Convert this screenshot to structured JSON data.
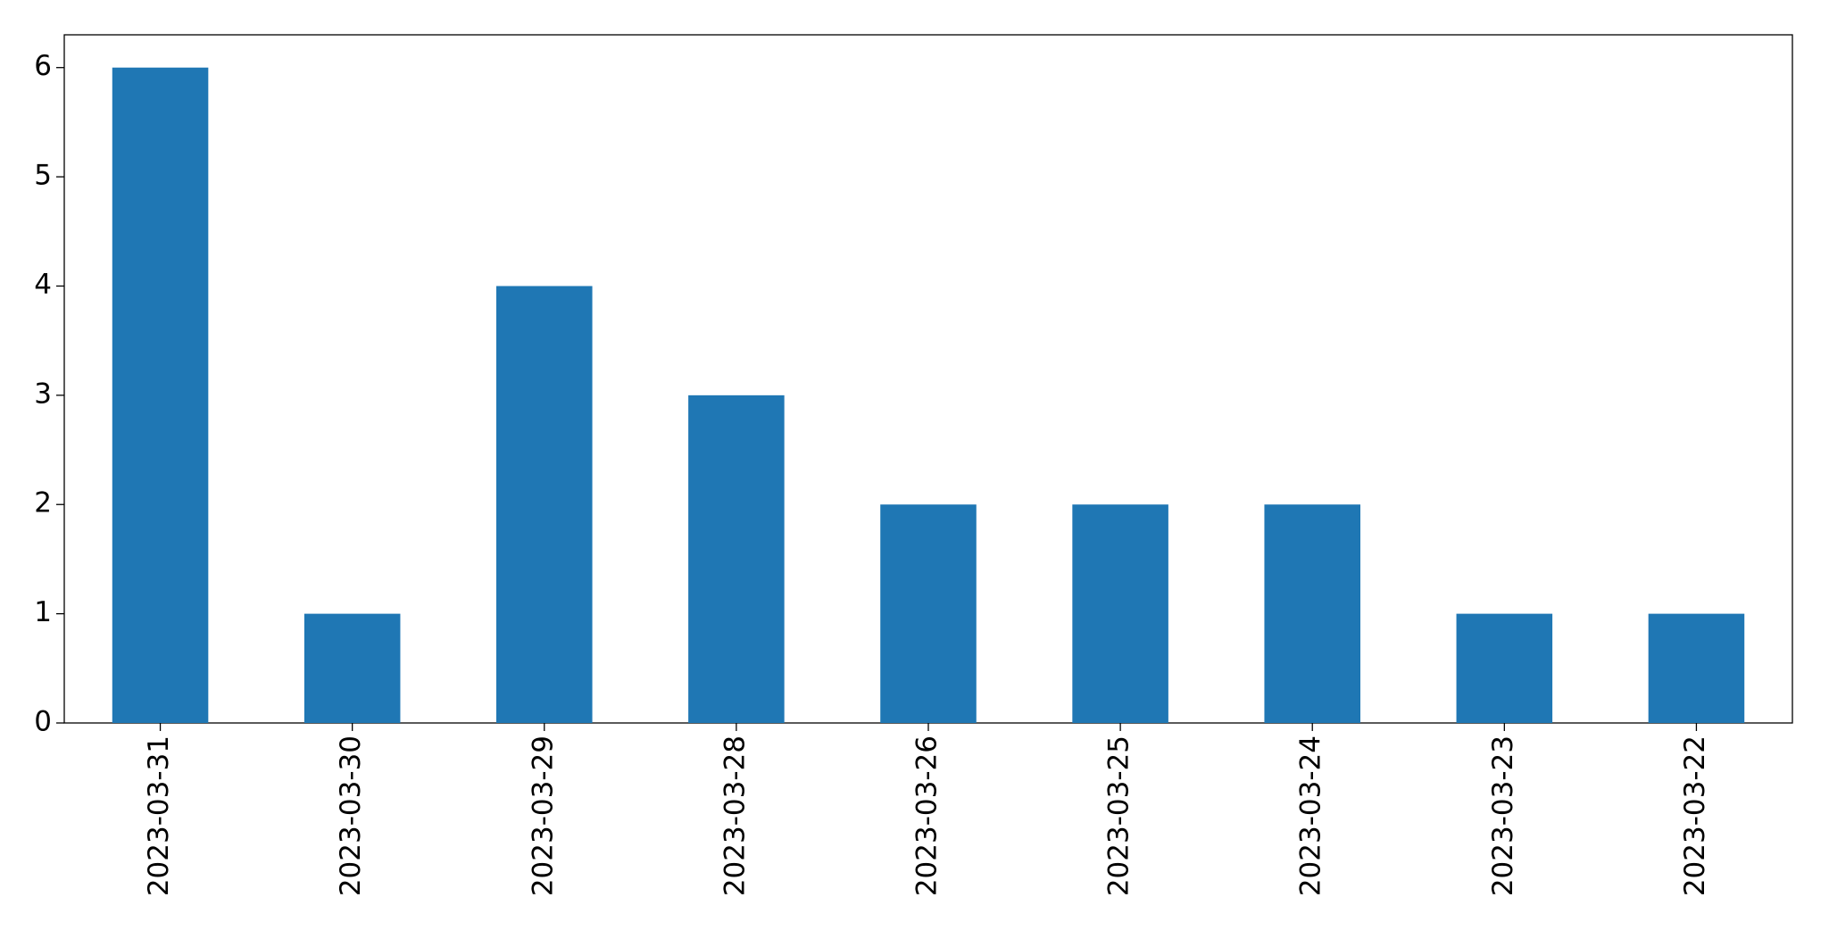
{
  "chart_data": {
    "type": "bar",
    "categories": [
      "2023-03-31",
      "2023-03-30",
      "2023-03-29",
      "2023-03-28",
      "2023-03-26",
      "2023-03-25",
      "2023-03-24",
      "2023-03-23",
      "2023-03-22"
    ],
    "values": [
      6,
      1,
      4,
      3,
      2,
      2,
      2,
      1,
      1
    ],
    "color": "#1f77b4",
    "ylim": [
      0,
      6.3
    ],
    "yticks": [
      0,
      1,
      2,
      3,
      4,
      5,
      6
    ],
    "grid": false
  }
}
